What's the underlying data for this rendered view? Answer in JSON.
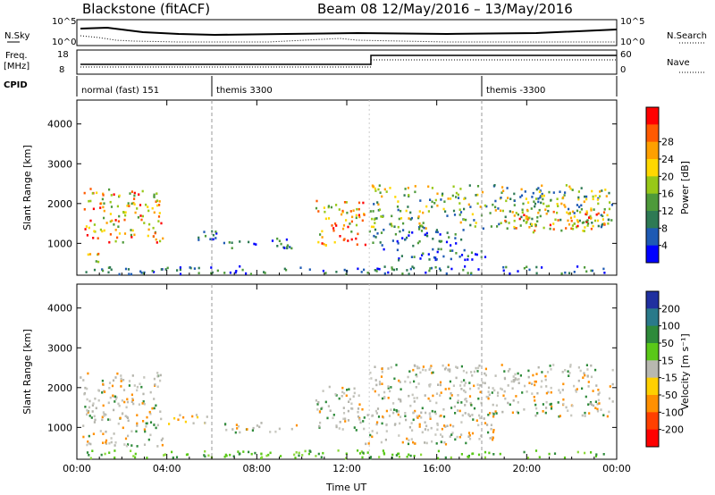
{
  "header": {
    "station": "Blackstone (fitACF)",
    "beam_date": "Beam 08  12/May/2016 – 13/May/2016"
  },
  "strip_labels": {
    "nsky": "N.Sky",
    "nsky_top": "10^5",
    "nsky_bottom": "10^0",
    "nsearch": "N.Search",
    "nsearch_top": "10^5",
    "nsearch_bottom": "10^0",
    "freq": "Freq.",
    "freq_unit": "[MHz]",
    "freq_top": "18",
    "freq_bottom": "8",
    "nave": "Nave",
    "nave_top": "60",
    "nave_bottom": "0",
    "cpid": "CPID"
  },
  "cpid_segments": [
    {
      "label": "normal (fast) 151",
      "start_hour": 0
    },
    {
      "label": "themis 3300",
      "start_hour": 6
    },
    {
      "label": "themis -3300",
      "start_hour": 18
    }
  ],
  "chart_data": [
    {
      "type": "heatmap",
      "name": "power",
      "ylabel": "Slant Range [km]",
      "xlabel": "Time UT",
      "xlim": [
        0,
        24
      ],
      "ylim": [
        200,
        4600
      ],
      "x_ticks": [
        "00:00",
        "04:00",
        "08:00",
        "12:00",
        "16:00",
        "20:00",
        "00:00"
      ],
      "y_ticks": [
        1000,
        2000,
        3000,
        4000
      ],
      "colorbar_label": "Power [dB]",
      "colorbar_ticks": [
        "4",
        "8",
        "12",
        "16",
        "20",
        "24",
        "28"
      ],
      "colorbar_colors": [
        "#0000ff",
        "#1e5ab4",
        "#2e7a54",
        "#4e9a3a",
        "#98c818",
        "#ffd800",
        "#ffa000",
        "#ff5a00",
        "#ff0000"
      ],
      "bands": [
        {
          "t0": 0.3,
          "t1": 3.8,
          "r0": 1050,
          "r1": 2400,
          "level": "high"
        },
        {
          "t0": 0.1,
          "t1": 1.0,
          "r0": 550,
          "r1": 800,
          "level": "high"
        },
        {
          "t0": 10.6,
          "t1": 12.8,
          "r0": 950,
          "r1": 2100,
          "level": "high"
        },
        {
          "t0": 13.0,
          "t1": 23.8,
          "r0": 1400,
          "r1": 2500,
          "level": "mid"
        },
        {
          "t0": 19.0,
          "t1": 23.5,
          "r0": 1300,
          "r1": 1900,
          "level": "high"
        },
        {
          "t0": 4.5,
          "t1": 6.2,
          "r0": 1100,
          "r1": 1350,
          "level": "low"
        },
        {
          "t0": 6.5,
          "t1": 9.8,
          "r0": 900,
          "r1": 1150,
          "level": "low"
        },
        {
          "t0": 12.8,
          "t1": 17.2,
          "r0": 950,
          "r1": 1400,
          "level": "low"
        },
        {
          "t0": 13.5,
          "t1": 18.5,
          "r0": 600,
          "r1": 900,
          "level": "low"
        },
        {
          "t0": 0.3,
          "t1": 23.5,
          "r0": 250,
          "r1": 450,
          "level": "low"
        }
      ]
    },
    {
      "type": "heatmap",
      "name": "velocity",
      "ylabel": "Slant Range [km]",
      "xlabel": "Time UT",
      "xlim": [
        0,
        24
      ],
      "ylim": [
        200,
        4600
      ],
      "x_ticks": [
        "00:00",
        "04:00",
        "08:00",
        "12:00",
        "16:00",
        "20:00",
        "00:00"
      ],
      "y_ticks": [
        1000,
        2000,
        3000,
        4000
      ],
      "colorbar_label": "Velocity [m s⁻¹]",
      "colorbar_ticks": [
        "200",
        "100",
        "50",
        "15",
        "-15",
        "-50",
        "-100",
        "-200"
      ],
      "colorbar_colors": [
        "#2030a0",
        "#2a7a8a",
        "#2e8a3a",
        "#5ac818",
        "#b8b8b0",
        "#ffd000",
        "#ff9000",
        "#ff4000",
        "#ff0000"
      ],
      "bands": [
        {
          "t0": 0.1,
          "t1": 3.8,
          "r0": 550,
          "r1": 2400,
          "level": "gray"
        },
        {
          "t0": 4.0,
          "t1": 6.0,
          "r0": 1100,
          "r1": 1350,
          "level": "orange"
        },
        {
          "t0": 6.5,
          "t1": 9.8,
          "r0": 900,
          "r1": 1150,
          "level": "gray"
        },
        {
          "t0": 10.6,
          "t1": 12.8,
          "r0": 950,
          "r1": 2100,
          "level": "gray"
        },
        {
          "t0": 13.0,
          "t1": 23.8,
          "r0": 1300,
          "r1": 2600,
          "level": "gray"
        },
        {
          "t0": 12.8,
          "t1": 18.5,
          "r0": 600,
          "r1": 1400,
          "level": "gray"
        },
        {
          "t0": 0.3,
          "t1": 23.5,
          "r0": 250,
          "r1": 450,
          "level": "green"
        }
      ]
    }
  ]
}
